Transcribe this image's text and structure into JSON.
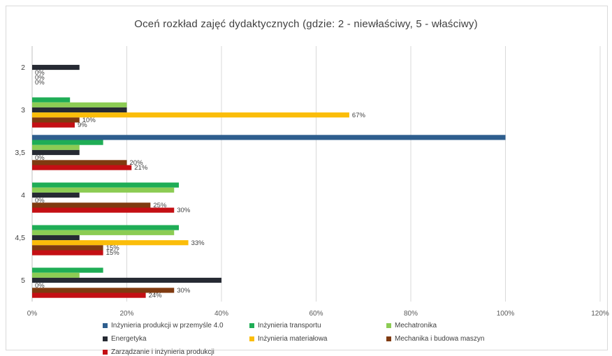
{
  "chart_data": {
    "type": "bar",
    "orientation": "horizontal",
    "title": "Oceń rozkład zajęć dydaktycznych (gdzie: 2 - niewłaściwy, 5 - właściwy)",
    "xlabel": "",
    "ylabel": "",
    "xlim": [
      0,
      120
    ],
    "x_ticks": [
      "0%",
      "20%",
      "40%",
      "60%",
      "80%",
      "100%",
      "120%"
    ],
    "x_tick_values": [
      0,
      20,
      40,
      60,
      80,
      100,
      120
    ],
    "grid": true,
    "legend_position": "bottom",
    "categories": [
      "2",
      "3",
      "3,5",
      "4",
      "4,5",
      "5"
    ],
    "series": [
      {
        "name": "Inżynieria produkcji w przemyśle 4.0",
        "color": "#2e5e8e",
        "values": [
          0,
          0,
          100,
          0,
          0,
          0
        ],
        "labels": [
          "",
          "",
          "",
          "",
          "",
          ""
        ]
      },
      {
        "name": "Inżynieria transportu",
        "color": "#1fad56",
        "values": [
          0,
          8,
          15,
          31,
          31,
          15
        ],
        "labels": [
          "",
          "",
          "",
          "",
          "",
          ""
        ]
      },
      {
        "name": "Mechatronika",
        "color": "#8ccc54",
        "values": [
          0,
          20,
          10,
          30,
          30,
          10
        ],
        "labels": [
          "",
          "",
          "",
          "",
          "",
          ""
        ]
      },
      {
        "name": "Energetyka",
        "color": "#262a33",
        "values": [
          10,
          20,
          10,
          10,
          10,
          40
        ],
        "labels": [
          "",
          "",
          "",
          "",
          "",
          ""
        ]
      },
      {
        "name": "Inżynieria materiałowa",
        "color": "#fbbd0a",
        "values": [
          0,
          67,
          0,
          0,
          33,
          0
        ],
        "labels": [
          "0%",
          "67%",
          "0%",
          "0%",
          "33%",
          "0%"
        ]
      },
      {
        "name": "Mechanika i budowa maszyn",
        "color": "#7f3a10",
        "values": [
          0,
          10,
          20,
          25,
          15,
          30
        ],
        "labels": [
          "0%",
          "10%",
          "20%",
          "25%",
          "15%",
          "30%"
        ]
      },
      {
        "name": "Zarządzanie i inżynieria produkcji",
        "color": "#c40f14",
        "values": [
          0,
          9,
          21,
          30,
          15,
          24
        ],
        "labels": [
          "0%",
          "9%",
          "21%",
          "30%",
          "15%",
          "24%"
        ]
      }
    ]
  }
}
